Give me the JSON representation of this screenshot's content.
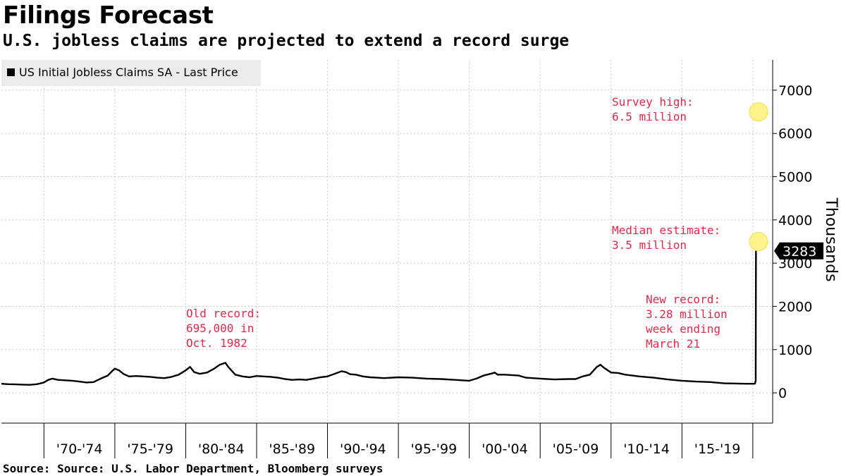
{
  "title": "Filings Forecast",
  "subtitle": "U.S. jobless claims are projected to extend a record surge",
  "source": "Source: Source: U.S. Labor Department, Bloomberg surveys",
  "colors": {
    "line": "#000000",
    "annotation": "#e0284a",
    "marker": "#fff38a",
    "grid": "#c8c8c8"
  },
  "chart_data": {
    "type": "line",
    "series": [
      {
        "name": "US Initial Jobless Claims SA - Last Price",
        "x": [
          1967.0,
          1967.5,
          1968.0,
          1968.5,
          1969.0,
          1969.5,
          1970.0,
          1970.3,
          1970.6,
          1971.0,
          1971.5,
          1972.0,
          1972.5,
          1973.0,
          1973.5,
          1974.0,
          1974.5,
          1974.8,
          1975.0,
          1975.3,
          1975.6,
          1976.0,
          1976.5,
          1977.0,
          1977.5,
          1978.0,
          1978.5,
          1979.0,
          1979.5,
          1980.0,
          1980.3,
          1980.6,
          1981.0,
          1981.5,
          1982.0,
          1982.4,
          1982.8,
          1983.0,
          1983.5,
          1984.0,
          1984.5,
          1985.0,
          1985.5,
          1986.0,
          1986.5,
          1987.0,
          1987.5,
          1988.0,
          1988.5,
          1989.0,
          1989.5,
          1990.0,
          1990.5,
          1991.0,
          1991.3,
          1991.6,
          1992.0,
          1992.5,
          1993.0,
          1993.5,
          1994.0,
          1995.0,
          1996.0,
          1997.0,
          1998.0,
          1999.0,
          2000.0,
          2000.5,
          2001.0,
          2001.5,
          2001.8,
          2002.0,
          2002.5,
          2003.0,
          2003.5,
          2004.0,
          2005.0,
          2006.0,
          2007.0,
          2007.5,
          2008.0,
          2008.5,
          2009.0,
          2009.25,
          2009.5,
          2010.0,
          2010.5,
          2011.0,
          2012.0,
          2013.0,
          2014.0,
          2015.0,
          2016.0,
          2017.0,
          2018.0,
          2019.0,
          2019.5,
          2020.0,
          2020.15,
          2020.2,
          2020.22
        ],
        "y": [
          210,
          200,
          195,
          190,
          185,
          200,
          240,
          300,
          330,
          300,
          290,
          280,
          260,
          240,
          250,
          330,
          400,
          500,
          560,
          520,
          440,
          380,
          390,
          380,
          370,
          350,
          340,
          370,
          420,
          520,
          600,
          480,
          440,
          470,
          560,
          650,
          695,
          600,
          420,
          380,
          360,
          390,
          380,
          370,
          350,
          320,
          300,
          310,
          300,
          330,
          360,
          380,
          440,
          500,
          480,
          430,
          420,
          380,
          360,
          350,
          340,
          360,
          350,
          330,
          320,
          300,
          280,
          330,
          400,
          440,
          470,
          420,
          420,
          410,
          400,
          350,
          330,
          310,
          320,
          320,
          380,
          420,
          600,
          650,
          580,
          470,
          460,
          420,
          380,
          350,
          310,
          280,
          260,
          250,
          220,
          215,
          210,
          210,
          211,
          281,
          3283
        ]
      }
    ],
    "last_value_label": "3283",
    "points": [
      {
        "name": "Survey high",
        "x": 2020.4,
        "y": 6500
      },
      {
        "name": "Median estimate",
        "x": 2020.4,
        "y": 3500
      }
    ],
    "annotations": [
      {
        "id": "survey_high",
        "lines": [
          "Survey high:",
          "6.5 million"
        ]
      },
      {
        "id": "median",
        "lines": [
          "Median estimate:",
          "3.5 million"
        ]
      },
      {
        "id": "old_record",
        "lines": [
          "Old record:",
          "695,000 in",
          "Oct. 1982"
        ]
      },
      {
        "id": "new_record",
        "lines": [
          "New record:",
          "3.28 million",
          "week ending",
          "March 21"
        ]
      }
    ],
    "x_tick_labels": [
      "'70-'74",
      "'75-'79",
      "'80-'84",
      "'85-'89",
      "'90-'94",
      "'95-'99",
      "'00-'04",
      "'05-'09",
      "'10-'14",
      "'15-'19"
    ],
    "x_tick_years": [
      1970,
      1975,
      1980,
      1985,
      1990,
      1995,
      2000,
      2005,
      2010,
      2015,
      2020
    ],
    "y_ticks": [
      0,
      1000,
      2000,
      3000,
      4000,
      5000,
      6000,
      7000
    ],
    "ylabel": "Thousands",
    "xlim": [
      1967.0,
      2021.4
    ],
    "ylim": [
      -700,
      7700
    ],
    "grid": true,
    "legend": "top-left"
  }
}
